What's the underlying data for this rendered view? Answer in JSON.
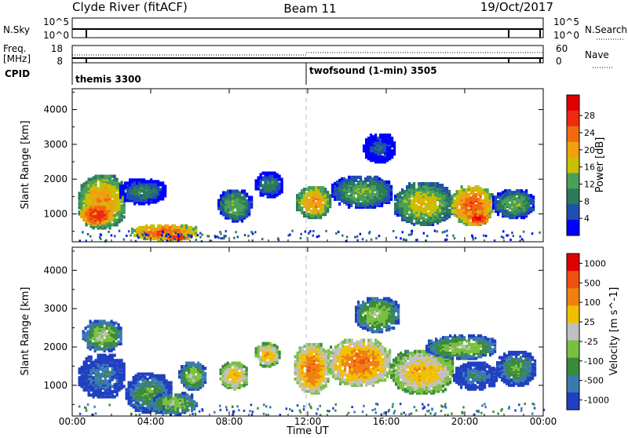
{
  "header": {
    "station": "Clyde River (fitACF)",
    "beam": "Beam 11",
    "date": "19/Oct/2017"
  },
  "noise_panel": {
    "left_label": "N.Sky",
    "right_label": "N.Search",
    "left_ticks": [
      "10^5",
      "10^0"
    ],
    "right_ticks": [
      "10^5",
      "10^0"
    ]
  },
  "freq_panel": {
    "left_label_1": "Freq.",
    "left_label_2": "[MHz]",
    "right_label": "Nave",
    "left_ticks": [
      "18",
      "8"
    ],
    "right_ticks": [
      "60",
      "0"
    ]
  },
  "cpid_panel": {
    "label": "CPID",
    "entries": [
      {
        "text": "themis 3300",
        "start_hour": 0
      },
      {
        "text": "twofsound (1-min) 3505",
        "start_hour": 12
      }
    ]
  },
  "x_axis": {
    "title": "Time UT",
    "ticks": [
      "00:00",
      "04:00",
      "08:00",
      "12:00",
      "16:00",
      "20:00",
      "00:00"
    ],
    "tick_hours": [
      0,
      4,
      8,
      12,
      16,
      20,
      24
    ]
  },
  "colors": {
    "power": [
      "#0000ff",
      "#1f4fb0",
      "#2d7a5a",
      "#48a05a",
      "#c8c000",
      "#f0a010",
      "#f06a10",
      "#f02a10",
      "#e00000"
    ],
    "velocity": [
      "#2040c0",
      "#3a7ab0",
      "#3a8a3a",
      "#7ac040",
      "#c0c0c0",
      "#f0c000",
      "#f08010",
      "#f05010",
      "#e00000"
    ]
  },
  "chart_data": [
    {
      "type": "heatmap",
      "title": "",
      "xlabel": "",
      "ylabel": "Slant Range [km]",
      "y_ticks": [
        "1000",
        "2000",
        "3000",
        "4000"
      ],
      "y_tick_values": [
        1000,
        2000,
        3000,
        4000
      ],
      "ylim": [
        200,
        4600
      ],
      "xlim_hours": [
        0,
        24
      ],
      "colorbar": {
        "label": "Power [dB]",
        "ticks": [
          "4",
          "8",
          "12",
          "16",
          "20",
          "24",
          "28"
        ],
        "range": [
          0,
          30
        ]
      },
      "regions": [
        {
          "t0": 0.3,
          "t1": 2.7,
          "r0": 600,
          "r1": 2100,
          "level": 6
        },
        {
          "t0": 0.4,
          "t1": 2.0,
          "r0": 700,
          "r1": 1300,
          "level": 8
        },
        {
          "t0": 2.4,
          "t1": 4.7,
          "r0": 1300,
          "r1": 2000,
          "level": 3
        },
        {
          "t0": 3.0,
          "t1": 6.3,
          "r0": 250,
          "r1": 700,
          "level": 7
        },
        {
          "t0": 4.5,
          "t1": 6.0,
          "r0": 250,
          "r1": 450,
          "level": 8
        },
        {
          "t0": 7.4,
          "t1": 9.1,
          "r0": 800,
          "r1": 1700,
          "level": 4
        },
        {
          "t0": 9.3,
          "t1": 10.7,
          "r0": 1500,
          "r1": 2200,
          "level": 3
        },
        {
          "t0": 11.4,
          "t1": 13.1,
          "r0": 900,
          "r1": 1800,
          "level": 6
        },
        {
          "t0": 13.2,
          "t1": 16.3,
          "r0": 1200,
          "r1": 2100,
          "level": 4
        },
        {
          "t0": 14.8,
          "t1": 16.4,
          "r0": 2500,
          "r1": 3300,
          "level": 2
        },
        {
          "t0": 16.4,
          "t1": 19.3,
          "r0": 700,
          "r1": 1900,
          "level": 5
        },
        {
          "t0": 19.3,
          "t1": 21.4,
          "r0": 700,
          "r1": 1800,
          "level": 7
        },
        {
          "t0": 20.0,
          "t1": 21.2,
          "r0": 700,
          "r1": 1100,
          "level": 8
        },
        {
          "t0": 21.4,
          "t1": 23.5,
          "r0": 900,
          "r1": 1700,
          "level": 4
        }
      ]
    },
    {
      "type": "heatmap",
      "title": "",
      "xlabel": "Time UT",
      "ylabel": "Slant Range [km]",
      "y_ticks": [
        "1000",
        "2000",
        "3000",
        "4000"
      ],
      "y_tick_values": [
        1000,
        2000,
        3000,
        4000
      ],
      "ylim": [
        200,
        4600
      ],
      "xlim_hours": [
        0,
        24
      ],
      "colorbar": {
        "label": "Velocity [m s^-1]",
        "ticks": [
          "1000",
          "500",
          "100",
          "25",
          "-25",
          "-100",
          "-500",
          "-1000"
        ]
      },
      "regions": [
        {
          "t0": 0.3,
          "t1": 2.7,
          "r0": 700,
          "r1": 1800,
          "level": 2
        },
        {
          "t0": 0.5,
          "t1": 2.5,
          "r0": 1900,
          "r1": 2700,
          "level": 4
        },
        {
          "t0": 2.7,
          "t1": 5.0,
          "r0": 300,
          "r1": 1300,
          "level": 3
        },
        {
          "t0": 4.0,
          "t1": 6.3,
          "r0": 250,
          "r1": 800,
          "level": 4
        },
        {
          "t0": 5.4,
          "t1": 6.8,
          "r0": 900,
          "r1": 1600,
          "level": 4
        },
        {
          "t0": 7.5,
          "t1": 8.9,
          "r0": 900,
          "r1": 1600,
          "level": 6
        },
        {
          "t0": 9.3,
          "t1": 10.5,
          "r0": 1500,
          "r1": 2100,
          "level": 6
        },
        {
          "t0": 11.3,
          "t1": 13.0,
          "r0": 800,
          "r1": 2100,
          "level": 7
        },
        {
          "t0": 13.0,
          "t1": 16.2,
          "r0": 1000,
          "r1": 2200,
          "level": 7
        },
        {
          "t0": 14.4,
          "t1": 16.6,
          "r0": 2400,
          "r1": 3300,
          "level": 4
        },
        {
          "t0": 16.2,
          "t1": 19.4,
          "r0": 800,
          "r1": 1900,
          "level": 6
        },
        {
          "t0": 18.0,
          "t1": 21.6,
          "r0": 1700,
          "r1": 2300,
          "level": 4
        },
        {
          "t0": 19.4,
          "t1": 21.6,
          "r0": 900,
          "r1": 1600,
          "level": 2
        },
        {
          "t0": 21.6,
          "t1": 23.6,
          "r0": 1000,
          "r1": 1900,
          "level": 3
        }
      ]
    }
  ]
}
